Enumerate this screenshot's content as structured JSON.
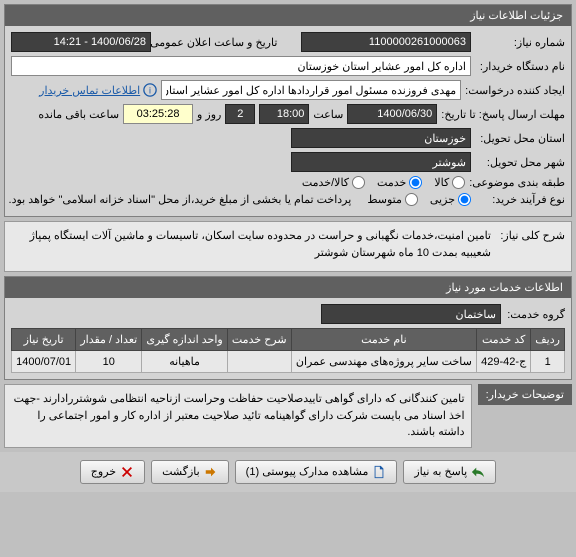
{
  "main_panel": {
    "title": "جزئیات اطلاعات نیاز"
  },
  "fields": {
    "need_number_label": "شماره نیاز:",
    "need_number": "1100000261000063",
    "announce_datetime_label": "تاریخ و ساعت اعلان عمومی:",
    "announce_datetime": "1400/06/28 - 14:21",
    "device_name_label": "نام دستگاه خریدار:",
    "device_name": "اداره کل امور عشایر استان خوزستان",
    "creator_label": "ایجاد کننده درخواست:",
    "creator": "مهدی فروزنده مسئول امور قراردادها اداره کل امور عشایر استان خوزستان",
    "contact_link": "اطلاعات تماس خریدار",
    "deadline_label": "مهلت ارسال پاسخ: تا تاریخ:",
    "deadline_date": "1400/06/30",
    "time_label": "ساعت",
    "deadline_time": "18:00",
    "day_label": "روز و",
    "days_remaining": "2",
    "countdown": "03:25:28",
    "remaining_label": "ساعت باقی مانده",
    "province_label": "استان محل تحویل:",
    "province": "خوزستان",
    "city_label": "شهر محل تحویل:",
    "city": "شوشتر",
    "category_label": "طبقه بندی موضوعی:",
    "category_options": {
      "kala": "کالا",
      "khedmat": "خدمت",
      "kala_khedmat": "کالا/خدمت"
    },
    "process_type_label": "نوع فرآیند خرید:",
    "process_options": {
      "open": "جزیی",
      "medium": "متوسط"
    },
    "process_note": "پرداخت تمام یا بخشی از مبلغ خرید،از محل \"اسناد خزانه اسلامی\" خواهد بود."
  },
  "desc_section": {
    "label": "شرح کلی نیاز:",
    "text": "تامین امنیت،خدمات نگهبانی و حراست در محدوده سایت اسکان، تاسیسات و ماشین آلات ایستگاه پمپاژ شعیبیه بمدت 10 ماه شهرستان شوشتر"
  },
  "services_panel": {
    "title": "اطلاعات خدمات مورد نیاز",
    "group_label": "گروه خدمت:",
    "group_value": "ساختمان",
    "columns": [
      "ردیف",
      "کد خدمت",
      "نام خدمت",
      "شرح خدمت",
      "واحد اندازه گیری",
      "تعداد / مقدار",
      "تاریخ نیاز"
    ],
    "rows": [
      [
        "1",
        "ج-42-429",
        "ساخت سایر پروژه‌های مهندسی عمران",
        "",
        "ماهیانه",
        "10",
        "1400/07/01"
      ]
    ]
  },
  "buyer_notes": {
    "label": "توضیحات خریدار:",
    "text": "تامین کنندگانی که دارای گواهی تاییدصلاحیت حفاظت وحراست ازناحیه انتظامی شوشتررادارند -جهت اخذ اسناد می بایست شرکت دارای گواهینامه تائید صلاحیت معتبر از اداره کار و امور اجتماعی را داشته باشند."
  },
  "buttons": {
    "reply": "پاسخ به نیاز",
    "view_docs": "مشاهده مدارک پیوستی (1)",
    "back": "بازگشت",
    "exit": "خروج"
  }
}
